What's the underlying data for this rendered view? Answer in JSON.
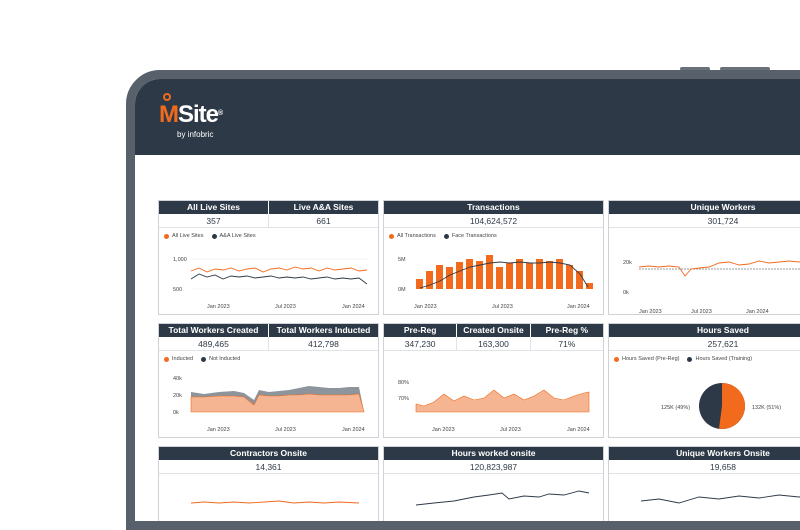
{
  "logo": {
    "m": "M",
    "text": "Site",
    "reg": "®",
    "sub": "by infobric"
  },
  "cards": {
    "sites": {
      "h1": "All Live Sites",
      "h2": "Live A&A Sites",
      "v1": "357",
      "v2": "661",
      "l1": "All Live Sites",
      "l2": "A&A Live Sites",
      "y1": "1,000",
      "y2": "500",
      "x1": "Jan 2023",
      "x2": "Jul 2023",
      "x3": "Jan 2024"
    },
    "trans": {
      "h1": "Transactions",
      "v1": "104,624,572",
      "l1": "All Transactions",
      "l2": "Face Transactions",
      "y1": "5M",
      "y2": "0M",
      "x1": "Jan 2023",
      "x2": "Jul 2023",
      "x3": "Jan 2024"
    },
    "unique": {
      "h1": "Unique Workers",
      "v1": "301,724",
      "y1": "20k",
      "y2": "0k",
      "x1": "Jan 2023",
      "x2": "Jul 2023",
      "x3": "Jan 2024"
    },
    "workers": {
      "h1": "Total Workers Created",
      "h2": "Total Workers Inducted",
      "v1": "489,465",
      "v2": "412,798",
      "l1": "Inducted",
      "l2": "Not Inducted",
      "y1": "40k",
      "y2": "20k",
      "y3": "0k",
      "x1": "Jan 2023",
      "x2": "Jul 2023",
      "x3": "Jan 2024"
    },
    "prereg": {
      "h1": "Pre-Reg",
      "h2": "Created Onsite",
      "h3": "Pre-Reg %",
      "v1": "347,230",
      "v2": "163,300",
      "v3": "71%",
      "y1": "80%",
      "y2": "70%",
      "x1": "Jan 2023",
      "x2": "Jul 2023",
      "x3": "Jan 2024"
    },
    "hours": {
      "h1": "Hours Saved",
      "v1": "257,621",
      "l1": "Hours Saved (Pre-Reg)",
      "l2": "Hours Saved (Training)",
      "p1": "125K (49%)",
      "p2": "132K (51%)"
    },
    "contractors": {
      "h1": "Contractors Onsite",
      "v1": "14,361"
    },
    "hoursonsite": {
      "h1": "Hours worked onsite",
      "v1": "120,823,987"
    },
    "uniqueonsite": {
      "h1": "Unique Workers Onsite",
      "v1": "19,658"
    }
  },
  "colors": {
    "orange": "#f26a1b",
    "navy": "#2e3947"
  }
}
